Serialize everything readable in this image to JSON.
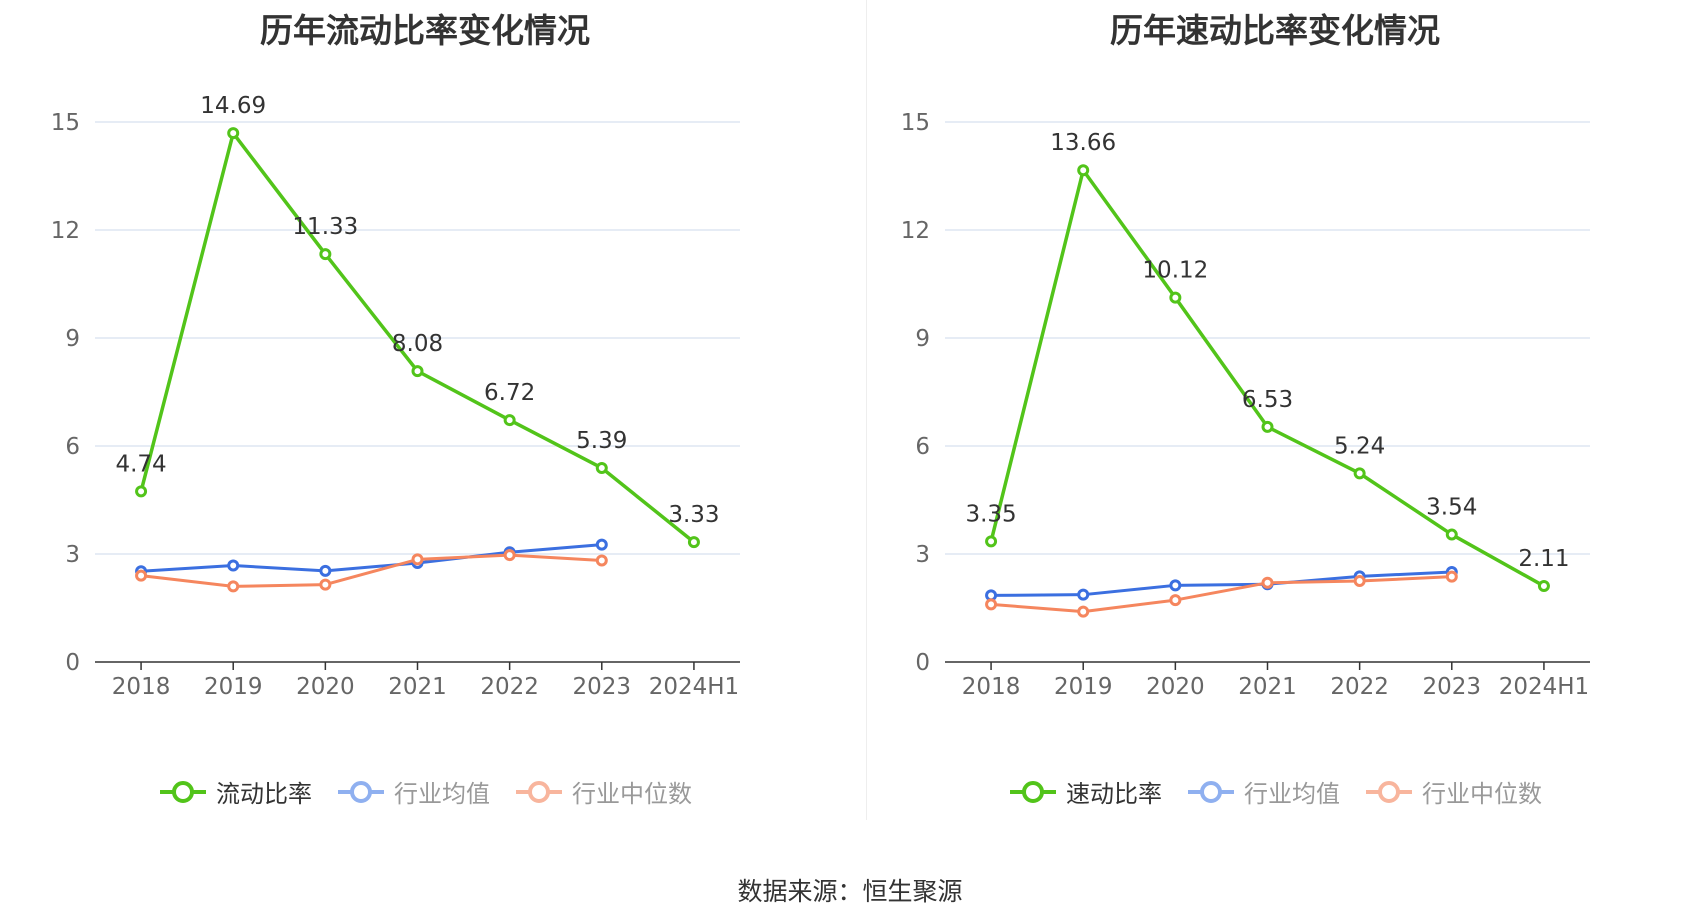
{
  "footer": {
    "source": "数据来源：恒生聚源"
  },
  "colors": {
    "main": "#52c41a",
    "avg": "#3b6fe0",
    "median": "#f5865e",
    "avg_legend": "#8fb0f0",
    "median_legend": "#f8b59d",
    "grid": "#dde6f2",
    "axis": "#333333"
  },
  "chart_data": [
    {
      "type": "line",
      "title": "历年流动比率变化情况",
      "categories": [
        "2018",
        "2019",
        "2020",
        "2021",
        "2022",
        "2023",
        "2024H1"
      ],
      "ylim": [
        0,
        15
      ],
      "yticks": [
        0,
        3,
        6,
        9,
        12,
        15
      ],
      "grid": true,
      "legend_position": "bottom",
      "series": [
        {
          "name": "流动比率",
          "role": "main",
          "values": [
            4.74,
            14.69,
            11.33,
            8.08,
            6.72,
            5.39,
            3.33
          ],
          "labels": [
            "4.74",
            "14.69",
            "11.33",
            "8.08",
            "6.72",
            "5.39",
            "3.33"
          ]
        },
        {
          "name": "行业均值",
          "role": "avg",
          "values": [
            2.52,
            2.68,
            2.53,
            2.75,
            3.05,
            3.26,
            null
          ]
        },
        {
          "name": "行业中位数",
          "role": "median",
          "values": [
            2.4,
            2.1,
            2.15,
            2.85,
            2.97,
            2.82,
            null
          ]
        }
      ]
    },
    {
      "type": "line",
      "title": "历年速动比率变化情况",
      "categories": [
        "2018",
        "2019",
        "2020",
        "2021",
        "2022",
        "2023",
        "2024H1"
      ],
      "ylim": [
        0,
        15
      ],
      "yticks": [
        0,
        3,
        6,
        9,
        12,
        15
      ],
      "grid": true,
      "legend_position": "bottom",
      "series": [
        {
          "name": "速动比率",
          "role": "main",
          "values": [
            3.35,
            13.66,
            10.12,
            6.53,
            5.24,
            3.54,
            2.11
          ],
          "labels": [
            "3.35",
            "13.66",
            "10.12",
            "6.53",
            "5.24",
            "3.54",
            "2.11"
          ]
        },
        {
          "name": "行业均值",
          "role": "avg",
          "values": [
            1.85,
            1.87,
            2.13,
            2.16,
            2.38,
            2.5,
            null
          ]
        },
        {
          "name": "行业中位数",
          "role": "median",
          "values": [
            1.6,
            1.4,
            1.72,
            2.2,
            2.25,
            2.37,
            null
          ]
        }
      ]
    }
  ]
}
